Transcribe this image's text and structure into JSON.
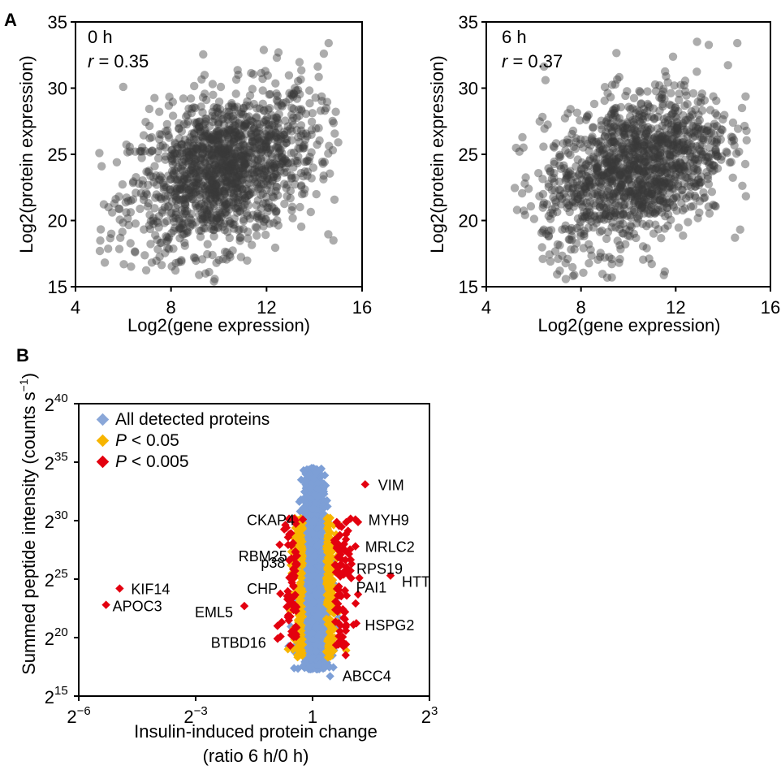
{
  "panel_letters": [
    "A",
    "B"
  ],
  "chart_data": [
    {
      "type": "scatter",
      "annotation": "0 h",
      "r_symbol": "r",
      "r_value": " = 0.35",
      "xlabel": "Log2(gene expression)",
      "ylabel": "Log2(protein expression)",
      "xlim": [
        4,
        16
      ],
      "ylim": [
        15,
        35
      ],
      "xticks": [
        4,
        8,
        12,
        16
      ],
      "yticks": [
        15,
        20,
        25,
        30,
        35
      ],
      "point_color": "#3a3a3a",
      "point_count_approx": 1500,
      "points_summary": {
        "x_center": 10.2,
        "y_center": 23.8,
        "correlation": 0.35
      },
      "extreme_points": [
        [
          5.0,
          25.1
        ],
        [
          5.5,
          19.0
        ],
        [
          6.0,
          30.1
        ],
        [
          9.8,
          15.4
        ],
        [
          9.9,
          16.8
        ],
        [
          14.6,
          33.4
        ],
        [
          14.4,
          32.6
        ],
        [
          12.5,
          32.7
        ],
        [
          15.0,
          25.9
        ],
        [
          14.8,
          18.5
        ]
      ]
    },
    {
      "type": "scatter",
      "annotation": "6 h",
      "r_symbol": "r",
      "r_value": " = 0.37",
      "xlabel": "Log2(gene expression)",
      "ylabel": "Log2(protein expression)",
      "xlim": [
        4,
        16
      ],
      "ylim": [
        15,
        35
      ],
      "xticks": [
        4,
        8,
        12,
        16
      ],
      "yticks": [
        15,
        20,
        25,
        30,
        35
      ],
      "point_color": "#3a3a3a",
      "point_count_approx": 1400,
      "points_summary": {
        "x_center": 10.3,
        "y_center": 23.9,
        "correlation": 0.37
      },
      "extreme_points": [
        [
          5.3,
          20.8
        ],
        [
          5.4,
          25.2
        ],
        [
          6.5,
          30.6
        ],
        [
          9.3,
          15.7
        ],
        [
          9.0,
          17.2
        ],
        [
          14.6,
          33.4
        ],
        [
          12.9,
          33.5
        ],
        [
          14.8,
          28.5
        ],
        [
          14.5,
          18.7
        ]
      ]
    },
    {
      "type": "scatter",
      "xlabel": "Insulin-induced protein change",
      "xlabel2": "(ratio 6 h/0 h)",
      "ylabel": "Summed peptide intensity (counts s",
      "ylabel_sup": "−1",
      "ylabel_end": ")",
      "x_scale": "log2",
      "y_scale": "log2",
      "x_tick_labels": [
        {
          "base": "2",
          "exp": "−6",
          "value_log2": -6
        },
        {
          "base": "2",
          "exp": "−3",
          "value_log2": -3
        },
        {
          "base": "1",
          "exp": "",
          "value_log2": 0
        },
        {
          "base": "2",
          "exp": "3",
          "value_log2": 3
        }
      ],
      "y_tick_labels": [
        {
          "base": "2",
          "exp": "15",
          "value_log2": 15
        },
        {
          "base": "2",
          "exp": "20",
          "value_log2": 20
        },
        {
          "base": "2",
          "exp": "25",
          "value_log2": 25
        },
        {
          "base": "2",
          "exp": "30",
          "value_log2": 30
        },
        {
          "base": "2",
          "exp": "35",
          "value_log2": 35
        },
        {
          "base": "2",
          "exp": "40",
          "value_log2": 40
        }
      ],
      "xlim_log2": [
        -6,
        3
      ],
      "ylim_log2": [
        15,
        40
      ],
      "legend_position": "top-left",
      "legend": [
        {
          "label": "All detected proteins",
          "italic_prefix": "",
          "color": "#8aa7d8"
        },
        {
          "label": " < 0.05",
          "italic_prefix": "P",
          "color": "#f7b500"
        },
        {
          "label": " < 0.005",
          "italic_prefix": "P",
          "color": "#e3000f"
        }
      ],
      "series_colors": {
        "all": "#7d9fd6",
        "p05": "#f7b500",
        "p005": "#e3000f"
      },
      "labeled_points": [
        {
          "label": "VIM",
          "x_log2": 1.35,
          "y_log2": 33.1
        },
        {
          "label": "CKAP4",
          "x_log2": -0.25,
          "y_log2": 30.1
        },
        {
          "label": "MYH9",
          "x_log2": 1.1,
          "y_log2": 30.1
        },
        {
          "label": "MRLC2",
          "x_log2": 1.1,
          "y_log2": 27.8
        },
        {
          "label": "RBM25",
          "x_log2": -0.4,
          "y_log2": 27.0
        },
        {
          "label": "RPS19",
          "x_log2": 1.0,
          "y_log2": 26.3
        },
        {
          "label": "p38",
          "x_log2": -0.45,
          "y_log2": 25.7
        },
        {
          "label": "KIF14",
          "x_log2": -4.95,
          "y_log2": 24.2
        },
        {
          "label": "HTT",
          "x_log2": 2.0,
          "y_log2": 25.3
        },
        {
          "label": "PAI1",
          "x_log2": 1.2,
          "y_log2": 25.1
        },
        {
          "label": "CHP",
          "x_log2": -0.6,
          "y_log2": 23.6
        },
        {
          "label": "APOC3",
          "x_log2": -5.3,
          "y_log2": 22.8
        },
        {
          "label": "EML5",
          "x_log2": -1.75,
          "y_log2": 22.7
        },
        {
          "label": "HSPG2",
          "x_log2": 1.05,
          "y_log2": 21.1
        },
        {
          "label": "BTBD16",
          "x_log2": -0.9,
          "y_log2": 21.0
        },
        {
          "label": "ABCC4",
          "x_log2": 0.85,
          "y_log2": 18.5
        }
      ]
    }
  ]
}
